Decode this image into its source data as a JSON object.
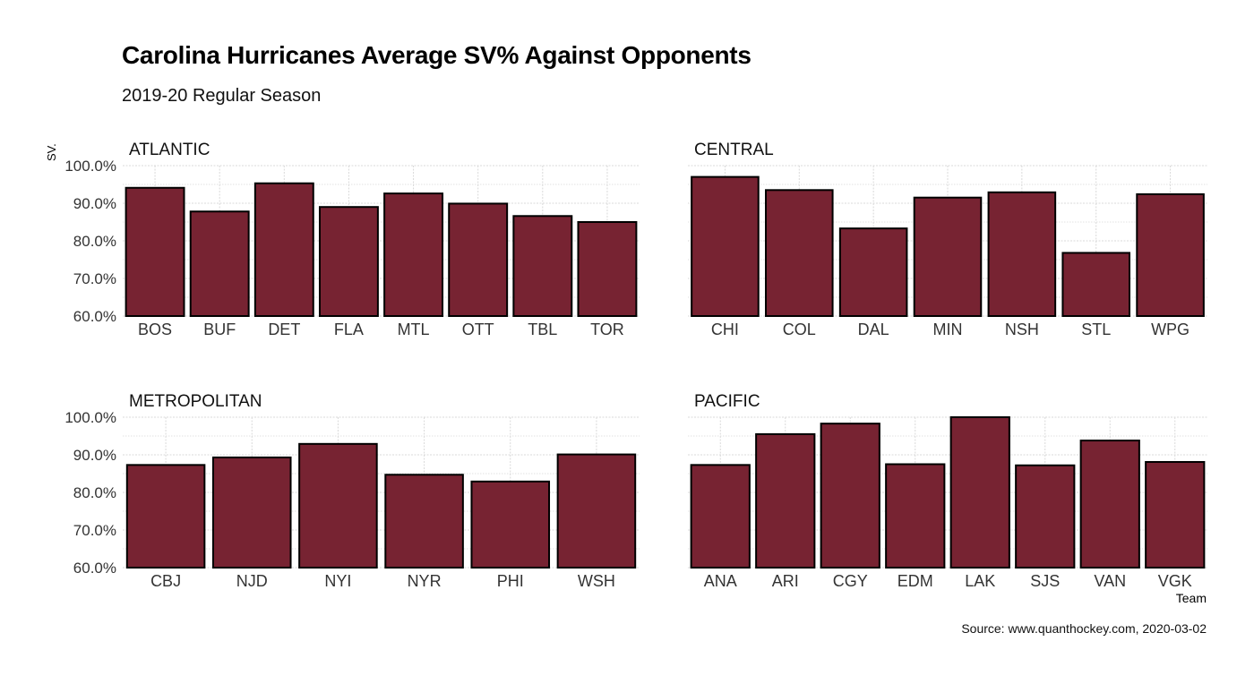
{
  "title": "Carolina Hurricanes Average SV% Against Opponents",
  "subtitle": "2019-20 Regular Season",
  "caption": "Source: www.quanthockey.com, 2020-03-02",
  "colors": {
    "bar": "#772332",
    "bar_stroke": "#000000",
    "grid": "#d9d9d9"
  },
  "chart_data": {
    "type": "bar",
    "xlabel": "Team",
    "ylabel": "SV.",
    "ylim": [
      0.6,
      1.0
    ],
    "yticks": [
      0.6,
      0.7,
      0.8,
      0.9,
      1.0
    ],
    "ytick_labels": [
      "60.0%",
      "70.0%",
      "80.0%",
      "90.0%",
      "100.0%"
    ],
    "grid": true,
    "facets": [
      {
        "name": "ATLANTIC",
        "categories": [
          "BOS",
          "BUF",
          "DET",
          "FLA",
          "MTL",
          "OTT",
          "TBL",
          "TOR"
        ],
        "values": [
          0.941,
          0.878,
          0.953,
          0.89,
          0.926,
          0.899,
          0.866,
          0.85
        ]
      },
      {
        "name": "CENTRAL",
        "categories": [
          "CHI",
          "COL",
          "DAL",
          "MIN",
          "NSH",
          "STL",
          "WPG"
        ],
        "values": [
          0.97,
          0.935,
          0.833,
          0.915,
          0.929,
          0.768,
          0.924
        ]
      },
      {
        "name": "METROPOLITAN",
        "categories": [
          "CBJ",
          "NJD",
          "NYI",
          "NYR",
          "PHI",
          "WSH"
        ],
        "values": [
          0.873,
          0.893,
          0.929,
          0.847,
          0.829,
          0.901
        ]
      },
      {
        "name": "PACIFIC",
        "categories": [
          "ANA",
          "ARI",
          "CGY",
          "EDM",
          "LAK",
          "SJS",
          "VAN",
          "VGK"
        ],
        "values": [
          0.873,
          0.955,
          0.983,
          0.875,
          1.0,
          0.872,
          0.938,
          0.881
        ]
      }
    ]
  }
}
